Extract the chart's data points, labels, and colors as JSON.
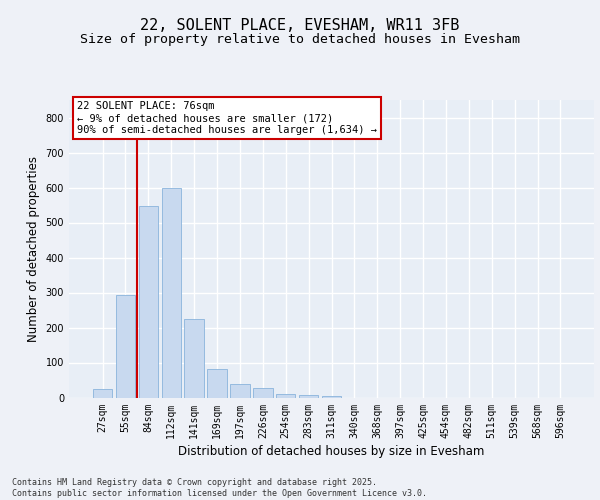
{
  "title": "22, SOLENT PLACE, EVESHAM, WR11 3FB",
  "subtitle": "Size of property relative to detached houses in Evesham",
  "xlabel": "Distribution of detached houses by size in Evesham",
  "ylabel": "Number of detached properties",
  "categories": [
    "27sqm",
    "55sqm",
    "84sqm",
    "112sqm",
    "141sqm",
    "169sqm",
    "197sqm",
    "226sqm",
    "254sqm",
    "283sqm",
    "311sqm",
    "340sqm",
    "368sqm",
    "397sqm",
    "425sqm",
    "454sqm",
    "482sqm",
    "511sqm",
    "539sqm",
    "568sqm",
    "596sqm"
  ],
  "values": [
    25,
    293,
    547,
    600,
    225,
    82,
    38,
    26,
    10,
    8,
    5,
    0,
    0,
    0,
    0,
    0,
    0,
    0,
    0,
    0,
    0
  ],
  "bar_color": "#c8d9ef",
  "bar_edge_color": "#8ab4dc",
  "background_color": "#e8eef6",
  "fig_background_color": "#eef1f7",
  "grid_color": "#ffffff",
  "vline_x_pos": 1.5,
  "vline_color": "#cc0000",
  "annotation_text": "22 SOLENT PLACE: 76sqm\n← 9% of detached houses are smaller (172)\n90% of semi-detached houses are larger (1,634) →",
  "annotation_box_edgecolor": "#cc0000",
  "annotation_box_facecolor": "#ffffff",
  "ylim": [
    0,
    850
  ],
  "yticks": [
    0,
    100,
    200,
    300,
    400,
    500,
    600,
    700,
    800
  ],
  "footer_line1": "Contains HM Land Registry data © Crown copyright and database right 2025.",
  "footer_line2": "Contains public sector information licensed under the Open Government Licence v3.0.",
  "title_fontsize": 11,
  "subtitle_fontsize": 9.5,
  "tick_fontsize": 7,
  "ylabel_fontsize": 8.5,
  "xlabel_fontsize": 8.5,
  "annotation_fontsize": 7.5,
  "footer_fontsize": 6
}
